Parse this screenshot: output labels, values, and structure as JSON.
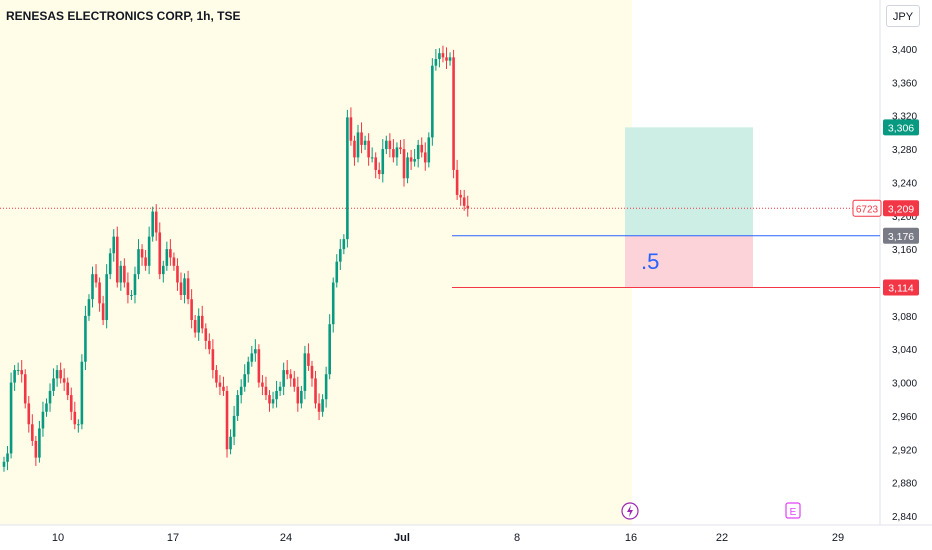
{
  "header": {
    "title": "RENESAS ELECTRONICS CORP, 1h, TSE",
    "currency": "JPY"
  },
  "colors": {
    "up": "#089981",
    "down": "#f23645",
    "session_bg": "#fffde7",
    "target_zone": "#cdeee5",
    "stop_zone": "#fbd3d8",
    "entry_line": "#2962ff",
    "stop_line": "#f23645",
    "neutral_label": "#787b86"
  },
  "chart_data": {
    "type": "candlestick",
    "title": "RENESAS ELECTRONICS CORP, 1h, TSE",
    "currency": "JPY",
    "ylim": [
      2830,
      3440
    ],
    "y_ticks": [
      2840,
      2880,
      2920,
      2960,
      3000,
      3040,
      3080,
      3120,
      3160,
      3200,
      3240,
      3280,
      3320,
      3360,
      3400
    ],
    "x_tick_labels": [
      "10",
      "17",
      "24",
      "Jul",
      "8",
      "16",
      "22",
      "29"
    ],
    "price_labels": [
      {
        "text": "3,306",
        "value": 3306,
        "role": "target"
      },
      {
        "text": "3,209",
        "value": 3209,
        "role": "last"
      },
      {
        "text": "3,176",
        "value": 3176,
        "role": "entry"
      },
      {
        "text": "3,114",
        "value": 3114,
        "role": "stop"
      }
    ],
    "symbol_badge": "6723",
    "position_tool": {
      "target": 3306,
      "entry": 3176,
      "stop": 3114,
      "label": ".5"
    },
    "event_markers": [
      {
        "icon": "lightning-icon",
        "x_label": "16"
      },
      {
        "icon": "earnings-icon",
        "text": "E",
        "x_label": "25"
      }
    ],
    "closes": [
      2905,
      2915,
      3000,
      3015,
      3015,
      3010,
      2975,
      2950,
      2930,
      2910,
      2945,
      2965,
      2975,
      2990,
      3005,
      3015,
      3005,
      3000,
      2985,
      2965,
      2950,
      2950,
      3025,
      3080,
      3100,
      3130,
      3120,
      3095,
      3075,
      3130,
      3155,
      3175,
      3120,
      3140,
      3120,
      3105,
      3105,
      3130,
      3160,
      3150,
      3140,
      3175,
      3205,
      3180,
      3130,
      3140,
      3160,
      3150,
      3140,
      3120,
      3105,
      3125,
      3100,
      3075,
      3060,
      3080,
      3065,
      3050,
      3040,
      3015,
      3000,
      2995,
      2990,
      2920,
      2935,
      2960,
      2985,
      2995,
      3010,
      3025,
      3035,
      3040,
      3000,
      2995,
      2985,
      2975,
      2980,
      2990,
      2995,
      3015,
      3010,
      3005,
      2995,
      2975,
      2990,
      3035,
      3020,
      3005,
      2975,
      2965,
      2980,
      3010,
      3070,
      3120,
      3145,
      3160,
      3172,
      3318,
      3290,
      3270,
      3300,
      3285,
      3290,
      3270,
      3270,
      3255,
      3250,
      3280,
      3290,
      3280,
      3270,
      3282,
      3280,
      3245,
      3270,
      3265,
      3268,
      3285,
      3276,
      3264,
      3294,
      3380,
      3388,
      3395,
      3390,
      3386,
      3390,
      3255,
      3225,
      3222,
      3212,
      3209
    ]
  }
}
